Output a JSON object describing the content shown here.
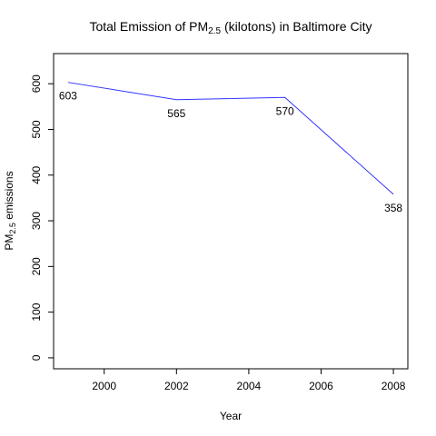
{
  "chart_data": {
    "type": "line",
    "title": {
      "prefix": "Total Emission of PM",
      "subscript": "2.5",
      "suffix": " (kilotons) in Baltimore City"
    },
    "xlabel": "Year",
    "ylabel": {
      "prefix": "PM",
      "subscript": "2.5",
      "suffix": " emissions"
    },
    "x": [
      1999,
      2002,
      2005,
      2008
    ],
    "series": [
      {
        "values": [
          603,
          565,
          570,
          358
        ],
        "data_labels": [
          "603",
          "565",
          "570",
          "358"
        ],
        "color": "#3333ff"
      }
    ],
    "xlim": [
      1998.6,
      2008.4
    ],
    "ylim": [
      -24,
      666
    ],
    "x_ticks": [
      2000,
      2002,
      2004,
      2006,
      2008
    ],
    "x_tick_labels": [
      "2000",
      "2002",
      "2004",
      "2006",
      "2008"
    ],
    "y_ticks": [
      0,
      100,
      200,
      300,
      400,
      500,
      600
    ],
    "y_tick_labels": [
      "0",
      "100",
      "200",
      "300",
      "400",
      "500",
      "600"
    ],
    "grid": false,
    "legend": "none"
  }
}
